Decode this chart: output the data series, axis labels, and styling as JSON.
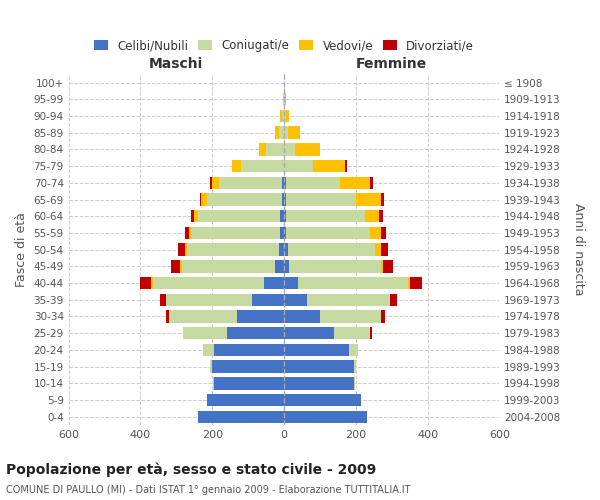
{
  "age_groups": [
    "0-4",
    "5-9",
    "10-14",
    "15-19",
    "20-24",
    "25-29",
    "30-34",
    "35-39",
    "40-44",
    "45-49",
    "50-54",
    "55-59",
    "60-64",
    "65-69",
    "70-74",
    "75-79",
    "80-84",
    "85-89",
    "90-94",
    "95-99",
    "100+"
  ],
  "birth_years": [
    "2004-2008",
    "1999-2003",
    "1994-1998",
    "1989-1993",
    "1984-1988",
    "1979-1983",
    "1974-1978",
    "1969-1973",
    "1964-1968",
    "1959-1963",
    "1954-1958",
    "1949-1953",
    "1944-1948",
    "1939-1943",
    "1934-1938",
    "1929-1933",
    "1924-1928",
    "1919-1923",
    "1914-1918",
    "1909-1913",
    "≤ 1908"
  ],
  "male": {
    "celibi": [
      240,
      215,
      195,
      200,
      195,
      160,
      130,
      90,
      55,
      25,
      15,
      10,
      10,
      5,
      5,
      0,
      0,
      0,
      0,
      0,
      0
    ],
    "coniugati": [
      0,
      0,
      2,
      5,
      30,
      120,
      190,
      240,
      310,
      260,
      255,
      250,
      230,
      210,
      175,
      120,
      50,
      15,
      5,
      3,
      0
    ],
    "vedovi": [
      0,
      0,
      0,
      0,
      0,
      0,
      0,
      0,
      5,
      5,
      5,
      5,
      10,
      15,
      20,
      25,
      20,
      10,
      5,
      0,
      0
    ],
    "divorziati": [
      0,
      0,
      0,
      0,
      0,
      0,
      10,
      15,
      30,
      25,
      20,
      10,
      8,
      5,
      5,
      0,
      0,
      0,
      0,
      0,
      0
    ]
  },
  "female": {
    "nubili": [
      230,
      215,
      195,
      195,
      180,
      140,
      100,
      65,
      40,
      15,
      10,
      5,
      5,
      5,
      5,
      0,
      0,
      0,
      0,
      0,
      0
    ],
    "coniugate": [
      0,
      0,
      2,
      5,
      25,
      100,
      170,
      230,
      305,
      255,
      245,
      235,
      220,
      195,
      150,
      80,
      30,
      10,
      5,
      2,
      0
    ],
    "vedove": [
      0,
      0,
      0,
      0,
      0,
      0,
      0,
      0,
      5,
      5,
      15,
      30,
      40,
      70,
      85,
      90,
      70,
      35,
      10,
      3,
      0
    ],
    "divorziate": [
      0,
      0,
      0,
      0,
      0,
      5,
      12,
      20,
      35,
      30,
      20,
      15,
      12,
      10,
      8,
      5,
      0,
      0,
      0,
      0,
      0
    ]
  },
  "colors": {
    "celibi_nubili": "#4472c4",
    "coniugati": "#c5d9a0",
    "vedovi": "#ffc000",
    "divorziati": "#c00000"
  },
  "xlim": 600,
  "title": "Popolazione per età, sesso e stato civile - 2009",
  "subtitle": "COMUNE DI PAULLO (MI) - Dati ISTAT 1° gennaio 2009 - Elaborazione TUTTITALIA.IT",
  "ylabel_left": "Fasce di età",
  "ylabel_right": "Anni di nascita",
  "xlabel_left": "Maschi",
  "xlabel_right": "Femmine",
  "bg_color": "#ffffff",
  "grid_color": "#cccccc"
}
